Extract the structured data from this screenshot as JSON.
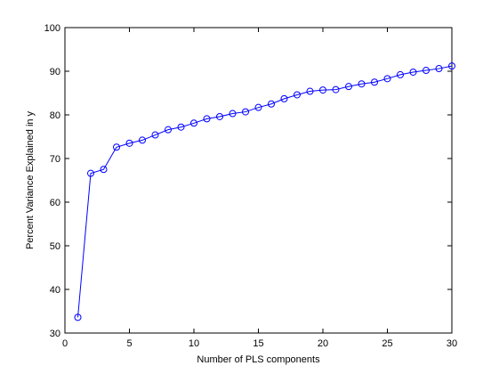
{
  "chart_data": {
    "type": "line",
    "title": "",
    "xlabel": "Number of PLS components",
    "ylabel": "Percent Variance Explained in y",
    "xlim": [
      0,
      30
    ],
    "ylim": [
      30,
      100
    ],
    "xticks": [
      0,
      5,
      10,
      15,
      20,
      25,
      30
    ],
    "yticks": [
      30,
      40,
      50,
      60,
      70,
      80,
      90,
      100
    ],
    "grid": false,
    "legend": "none",
    "marker": "circle",
    "line_color": "#0000ff",
    "series": [
      {
        "x": [
          1,
          2,
          3,
          4,
          5,
          6,
          7,
          8,
          9,
          10,
          11,
          12,
          13,
          14,
          15,
          16,
          17,
          18,
          19,
          20,
          21,
          22,
          23,
          24,
          25,
          26,
          27,
          28,
          29,
          30
        ],
        "values": [
          33.6,
          66.6,
          67.5,
          72.6,
          73.5,
          74.2,
          75.4,
          76.6,
          77.2,
          78.1,
          79.1,
          79.6,
          80.3,
          80.7,
          81.7,
          82.5,
          83.7,
          84.6,
          85.4,
          85.7,
          85.8,
          86.5,
          87.1,
          87.5,
          88.3,
          89.2,
          89.8,
          90.2,
          90.6,
          91.2
        ]
      }
    ]
  }
}
